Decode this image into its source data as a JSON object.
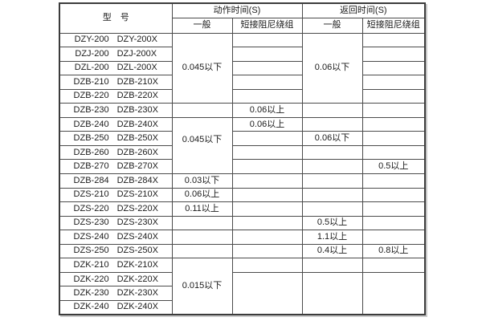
{
  "header": {
    "model": "型　号",
    "action_time": "动作时间(S)",
    "return_time": "返回时间(S)",
    "action_general": "一般",
    "action_damped": "短接阻尼绕组",
    "return_general": "一般",
    "return_damped": "短接阻尼绕组"
  },
  "models": [
    [
      "DZY-200",
      "DZY-200X"
    ],
    [
      "DZJ-200",
      "DZJ-200X"
    ],
    [
      "DZL-200",
      "DZL-200X"
    ],
    [
      "DZB-210",
      "DZB-210X"
    ],
    [
      "DZB-220",
      "DZB-220X"
    ],
    [
      "DZB-230",
      "DZB-230X"
    ],
    [
      "DZB-240",
      "DZB-240X"
    ],
    [
      "DZB-250",
      "DZB-250X"
    ],
    [
      "DZB-260",
      "DZB-260X"
    ],
    [
      "DZB-270",
      "DZB-270X"
    ],
    [
      "DZB-284",
      "DZB-284X"
    ],
    [
      "DZS-210",
      "DZS-210X"
    ],
    [
      "DZS-220",
      "DZS-220X"
    ],
    [
      "DZS-230",
      "DZS-230X"
    ],
    [
      "DZS-240",
      "DZS-240X"
    ],
    [
      "DZS-250",
      "DZS-250X"
    ],
    [
      "DZK-210",
      "DZK-210X"
    ],
    [
      "DZK-220",
      "DZK-220X"
    ],
    [
      "DZK-230",
      "DZK-230X"
    ],
    [
      "DZK-240",
      "DZK-240X"
    ]
  ],
  "values": {
    "action_general": {
      "rows_1_5": "0.045以下",
      "row_6": "",
      "rows_7_10": "0.045以下",
      "row_11": "0.03以下",
      "row_12": "0.06以上",
      "row_13": "0.11以上",
      "row_14": "",
      "row_15": "",
      "row_16": "",
      "rows_17_20": "0.015以下"
    },
    "action_damped": {
      "row_6": "0.06以上",
      "row_7": "0.06以上"
    },
    "return_general": {
      "rows_1_5": "0.06以下",
      "row_8": "0.06以下",
      "row_14": "0.5以上",
      "row_15": "1.1以上",
      "row_16": "0.4以上"
    },
    "return_damped": {
      "row_10": "0.5以上",
      "row_16": "0.8以上"
    }
  }
}
